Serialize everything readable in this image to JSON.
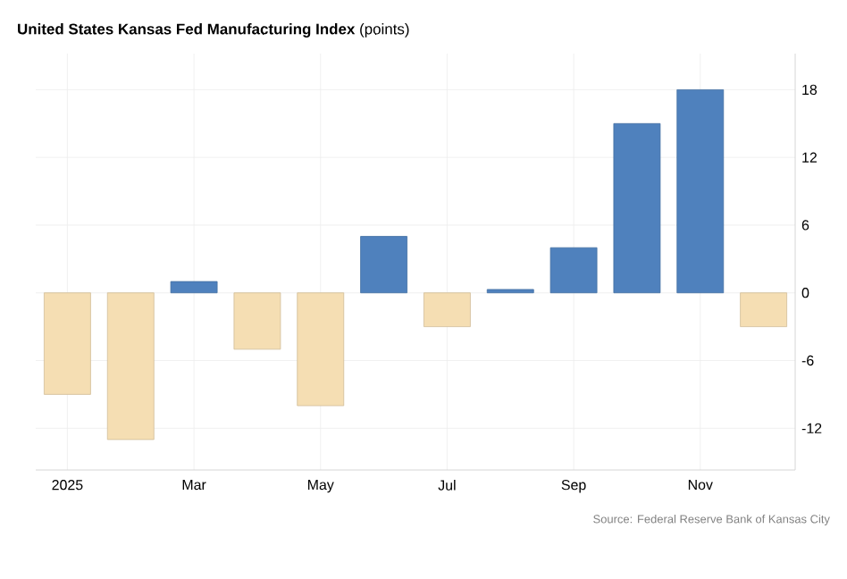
{
  "chart_data": {
    "type": "bar",
    "title": "**United States Kansas Fed Manufacturing Index** (points)",
    "categories": [
      "2025",
      null,
      "Mar",
      null,
      "May",
      null,
      "Jul",
      null,
      "Sep",
      null,
      "Nov",
      null
    ],
    "values": [
      -9,
      -13,
      1,
      -5,
      -10,
      5,
      -3,
      0.3,
      4,
      15,
      18,
      -3
    ],
    "colors": [
      "#f5deb3",
      "#f5deb3",
      "#4f81bd",
      "#f5deb3",
      "#f5deb3",
      "#4f81bd",
      "#f5deb3",
      "#4f81bd",
      "#4f81bd",
      "#4f81bd",
      "#4f81bd",
      "#f5deb3"
    ],
    "ylim": [
      -15.7,
      21.2
    ],
    "yticks": [
      -12,
      -6,
      0,
      6,
      12,
      18
    ],
    "grid": true,
    "annotations": [
      "Source: Federal Reserve Bank of Kansas City"
    ]
  }
}
